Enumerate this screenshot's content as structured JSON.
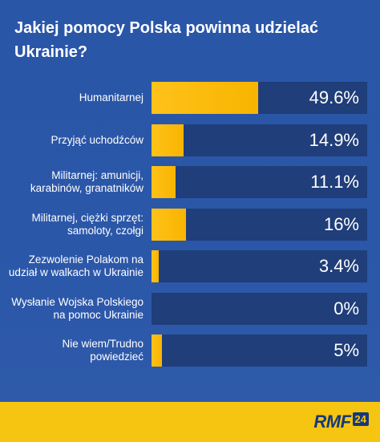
{
  "title": "Jakiej pomocy Polska powinna udzielać Ukrainie?",
  "chart_data": {
    "type": "bar",
    "orientation": "horizontal",
    "title": "Jakiej pomocy Polska powinna udzielać Ukrainie?",
    "xlim": [
      0,
      100
    ],
    "categories": [
      "Humanitarnej",
      "Przyjąć uchodźców",
      "Militarnej: amunicji, karabinów, granatników",
      "Militarnej, ciężki sprzęt: samoloty, czołgi",
      "Zezwolenie Polakom na udział w walkach w Ukrainie",
      "Wysłanie Wojska Polskiego na pomoc Ukrainie",
      "Nie wiem/Trudno powiedzieć"
    ],
    "values": [
      49.6,
      14.9,
      11.1,
      16,
      3.4,
      0,
      5
    ],
    "value_labels": [
      "49.6%",
      "14.9%",
      "11.1%",
      "16%",
      "3.4%",
      "0%",
      "5%"
    ],
    "colors": {
      "bar": "#ffc21a",
      "track": "#1f3e7a",
      "background": "#2a55a6"
    }
  },
  "branding": {
    "logo_text": "RMF",
    "logo_number": "24",
    "footer_color": "#f6c511"
  }
}
